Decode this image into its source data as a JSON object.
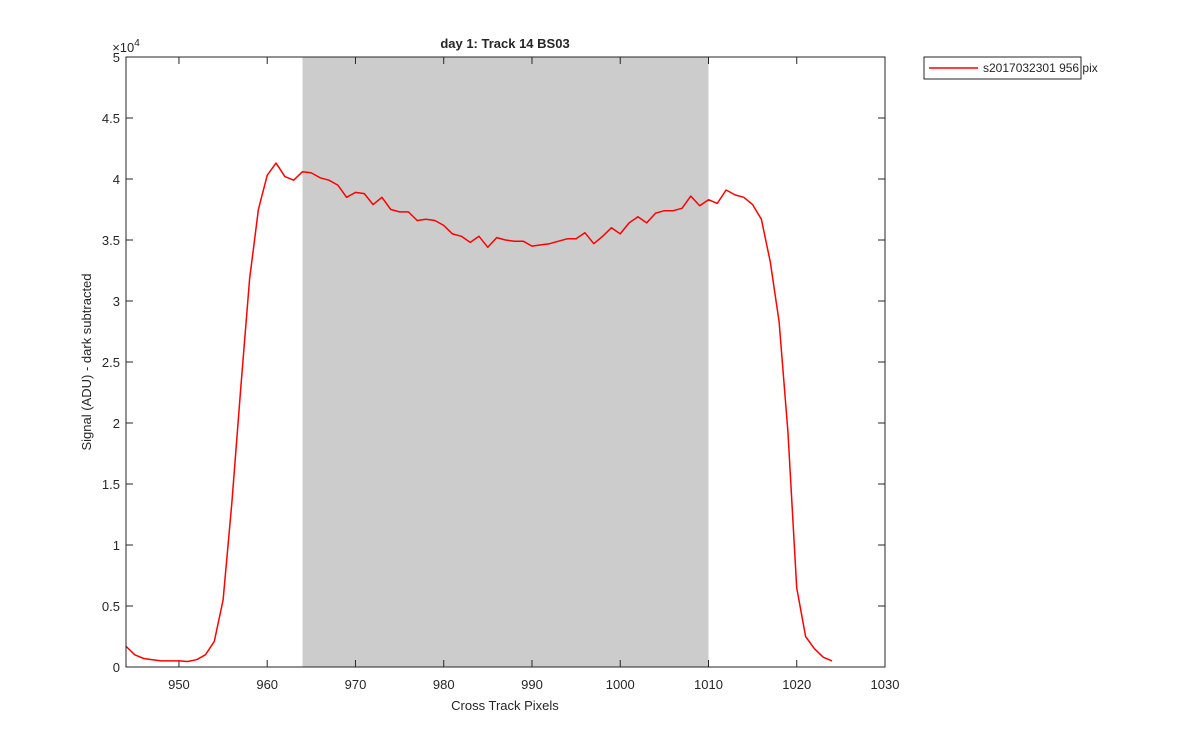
{
  "chart_data": {
    "type": "line",
    "title": "day 1: Track 14  BS03",
    "xlabel": "Cross Track Pixels",
    "ylabel": "Signal (ADU) - dark subtracted",
    "xlim": [
      944,
      1030
    ],
    "ylim": [
      0,
      50000
    ],
    "y_multiplier_label": "×10",
    "y_multiplier_exponent": "4",
    "xticks": [
      950,
      960,
      970,
      980,
      990,
      1000,
      1010,
      1020,
      1030
    ],
    "xtick_labels": [
      "950",
      "960",
      "970",
      "980",
      "990",
      "1000",
      "1010",
      "1020",
      "1030"
    ],
    "yticks": [
      0,
      5000,
      10000,
      15000,
      20000,
      25000,
      30000,
      35000,
      40000,
      45000,
      50000
    ],
    "ytick_labels": [
      "0",
      "0.5",
      "1",
      "1.5",
      "2",
      "2.5",
      "3",
      "3.5",
      "4",
      "4.5",
      "5"
    ],
    "grid": false,
    "legend_position": "outside-top-right",
    "shaded_region": {
      "x_start": 964,
      "x_end": 1010,
      "color": "#cccccc"
    },
    "series": [
      {
        "name": "s2017032301 956 pix",
        "color": "#ff0000",
        "x": [
          944,
          945,
          946,
          947,
          948,
          949,
          950,
          951,
          952,
          953,
          954,
          955,
          956,
          957,
          958,
          959,
          960,
          961,
          962,
          963,
          964,
          965,
          966,
          967,
          968,
          969,
          970,
          971,
          972,
          973,
          974,
          975,
          976,
          977,
          978,
          979,
          980,
          981,
          982,
          983,
          984,
          985,
          986,
          987,
          988,
          989,
          990,
          991,
          992,
          993,
          994,
          995,
          996,
          997,
          998,
          999,
          1000,
          1001,
          1002,
          1003,
          1004,
          1005,
          1006,
          1007,
          1008,
          1009,
          1010,
          1011,
          1012,
          1013,
          1014,
          1015,
          1016,
          1017,
          1018,
          1019,
          1020,
          1021,
          1022,
          1023,
          1024
        ],
        "y": [
          1700,
          1000,
          700,
          600,
          500,
          500,
          500,
          450,
          600,
          1000,
          2100,
          5500,
          13500,
          22800,
          31800,
          37500,
          40300,
          41300,
          40200,
          39900,
          40600,
          40500,
          40100,
          39900,
          39500,
          38500,
          38900,
          38800,
          37900,
          38500,
          37500,
          37300,
          37300,
          36600,
          36700,
          36600,
          36200,
          35500,
          35300,
          34800,
          35300,
          34400,
          35200,
          35000,
          34900,
          34900,
          34500,
          34600,
          34700,
          34900,
          35100,
          35100,
          35600,
          34700,
          35300,
          36000,
          35500,
          36400,
          36900,
          36400,
          37200,
          37400,
          37400,
          37600,
          38600,
          37800,
          38300,
          38000,
          39100,
          38700,
          38500,
          37900,
          36700,
          33200,
          28300,
          19300,
          6500,
          2500,
          1500,
          800,
          500
        ]
      }
    ]
  }
}
